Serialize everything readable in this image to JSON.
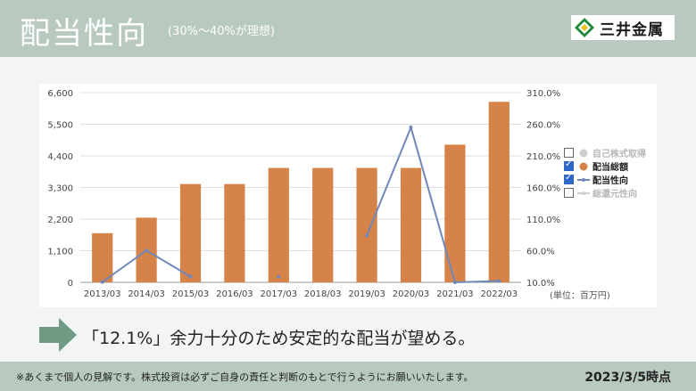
{
  "header": {
    "title": "配当性向",
    "subtitle": "(30%〜40%が理想)",
    "logo_text": "三井金属"
  },
  "chart_data": {
    "type": "bar+line",
    "categories": [
      "2013/03",
      "2014/03",
      "2015/03",
      "2016/03",
      "2017/03",
      "2018/03",
      "2019/03",
      "2020/03",
      "2021/03",
      "2022/03"
    ],
    "series": [
      {
        "name": "配当総額",
        "type": "bar",
        "axis": "left",
        "color": "#d6834a",
        "values": [
          1710,
          2250,
          3420,
          3420,
          3980,
          3980,
          3980,
          3980,
          4790,
          6280
        ]
      },
      {
        "name": "配当性向",
        "type": "line",
        "axis": "right",
        "color": "#6f87b9",
        "values": [
          10.5,
          60.5,
          19.0,
          null,
          19.0,
          null,
          84.0,
          255.0,
          10.0,
          12.1
        ]
      }
    ],
    "left_axis": {
      "min": 0,
      "max": 6600,
      "ticks": [
        "0",
        "1,100",
        "2,200",
        "3,300",
        "4,400",
        "5,500",
        "6,600"
      ]
    },
    "right_axis": {
      "min": 10,
      "max": 310,
      "ticks": [
        "10.0%",
        "60.0%",
        "110.0%",
        "160.0%",
        "210.0%",
        "260.0%",
        "310.0%"
      ]
    },
    "legend": [
      {
        "label": "自己株式取得",
        "checked": false,
        "symbol": "dot",
        "color": "#cfcfcf",
        "active": false
      },
      {
        "label": "配当総額",
        "checked": true,
        "symbol": "dot",
        "color": "#d6834a",
        "active": true
      },
      {
        "label": "配当性向",
        "checked": true,
        "symbol": "line",
        "color": "#6f87b9",
        "active": true
      },
      {
        "label": "総還元性向",
        "checked": false,
        "symbol": "line",
        "color": "#cfcfcf",
        "active": false
      }
    ],
    "unit_note": "(単位：百万円)",
    "grid": true
  },
  "conclusion": "「12.1%」余力十分のため安定的な配当が望める。",
  "footer": {
    "disclaimer": "※あくまで個人の見解です。株式投資は必ずご自身の責任と判断のもとで行うようにお願いいたします。",
    "as_of": "2023/3/5時点"
  }
}
